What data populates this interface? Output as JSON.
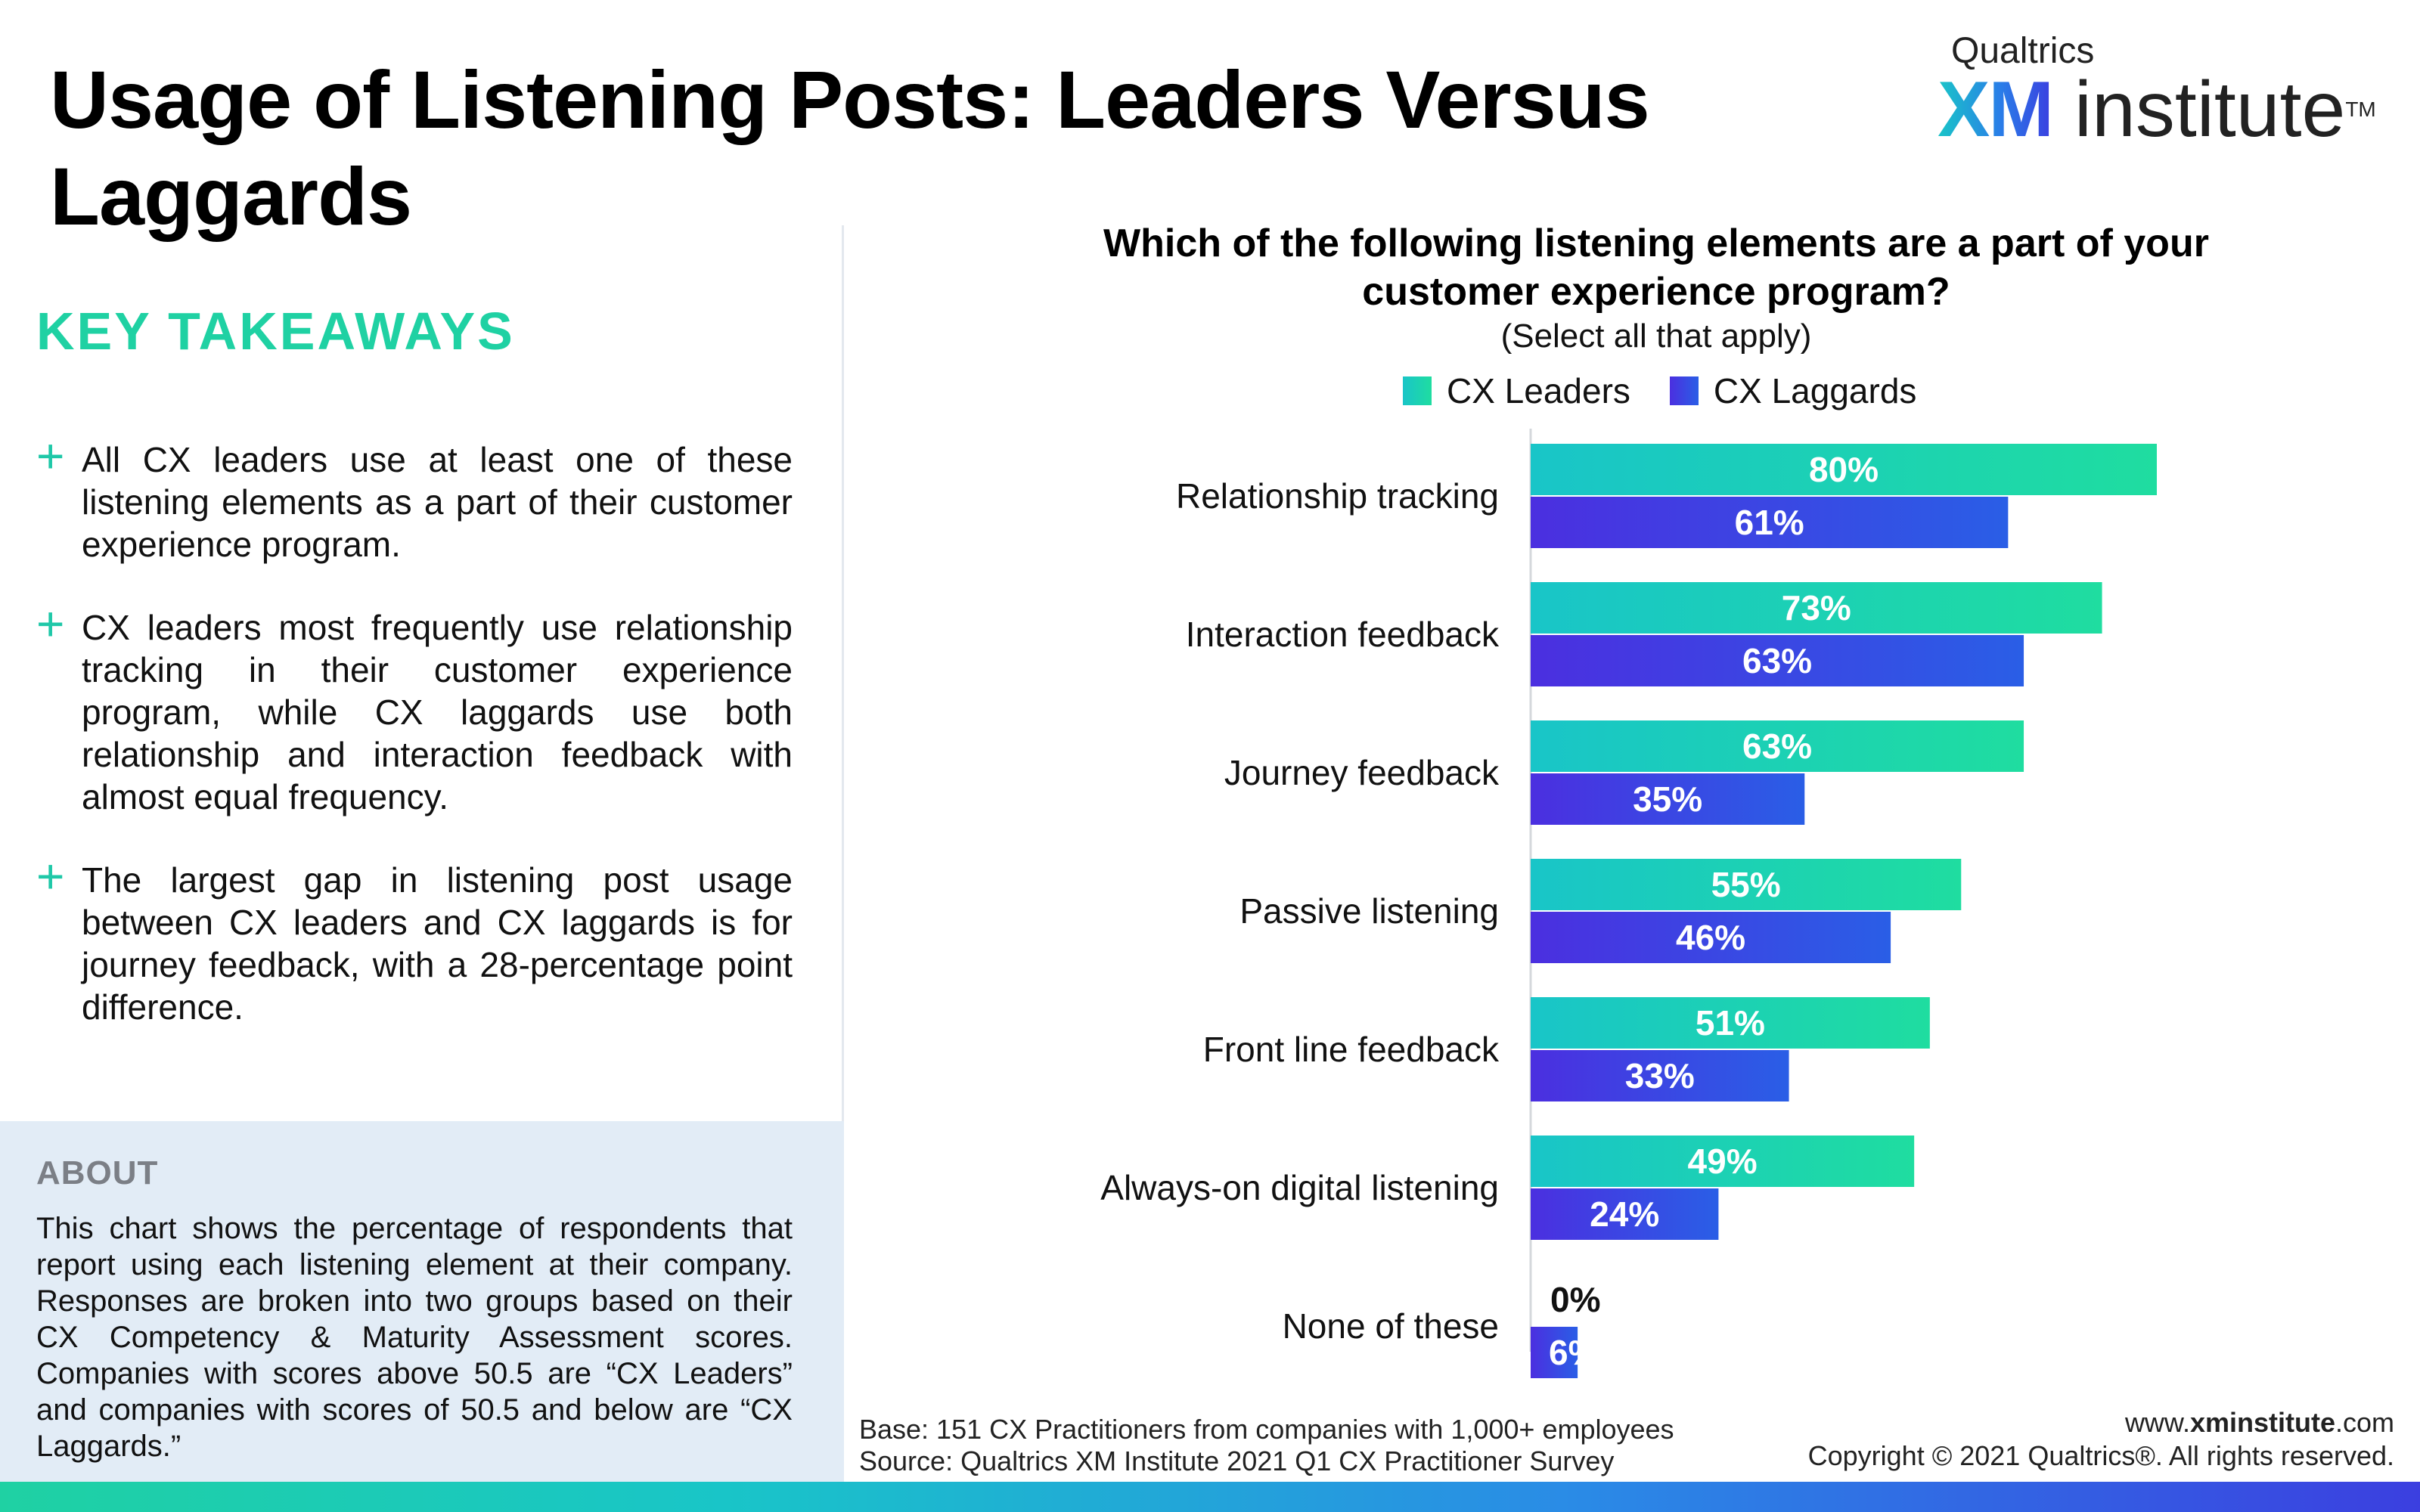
{
  "title": "Usage of Listening Posts: Leaders Versus Laggards",
  "brand": {
    "top": "Qualtrics",
    "xm": "XM",
    "institute": "institute",
    "tm": "TM"
  },
  "takeaways": {
    "heading": "KEY TAKEAWAYS",
    "items": [
      "All CX leaders use at least one of these listening elements as a part of their customer experience program.",
      "CX leaders most frequently use relationship tracking in their customer experience program, while CX laggards use both relationship and interaction feedback with almost equal frequency.",
      "The largest gap in listening post usage between CX leaders and CX laggards is for journey feedback, with a 28-percentage point difference."
    ]
  },
  "about": {
    "heading": "ABOUT",
    "text": "This chart shows the percentage of respondents that report using each listening element at their company. Responses are broken into two groups based on their CX Competency & Maturity Assessment scores. Companies with scores above 50.5 are “CX Leaders” and companies with scores of 50.5 and below  are “CX Laggards.”"
  },
  "chart_data": {
    "type": "bar",
    "orientation": "horizontal",
    "title": "Which of the following listening elements are a part of your customer experience program?",
    "subtitle": "(Select all that apply)",
    "categories": [
      "Relationship tracking",
      "Interaction feedback",
      "Journey feedback",
      "Passive listening",
      "Front line feedback",
      "Always-on digital listening",
      "None of these"
    ],
    "series": [
      {
        "name": "CX Leaders",
        "values": [
          80,
          73,
          63,
          55,
          51,
          49,
          0
        ],
        "color_start": "#19c5c8",
        "color_end": "#1fdda0"
      },
      {
        "name": "CX Laggards",
        "values": [
          61,
          63,
          35,
          46,
          33,
          24,
          6
        ],
        "color_start": "#4b2fe0",
        "color_end": "#2a5ee6"
      }
    ],
    "value_suffix": "%",
    "xlim": [
      0,
      100
    ],
    "legend_position": "top",
    "grid": false
  },
  "footer": {
    "base": "Base: 151 CX Practitioners from companies with 1,000+ employees",
    "source": "Source: Qualtrics XM Institute 2021 Q1 CX Practitioner Survey",
    "site_prefix": "www.",
    "site_bold": "xminstitute",
    "site_suffix": ".com",
    "copyright": "Copyright © 2021 Qualtrics®. All rights reserved."
  }
}
